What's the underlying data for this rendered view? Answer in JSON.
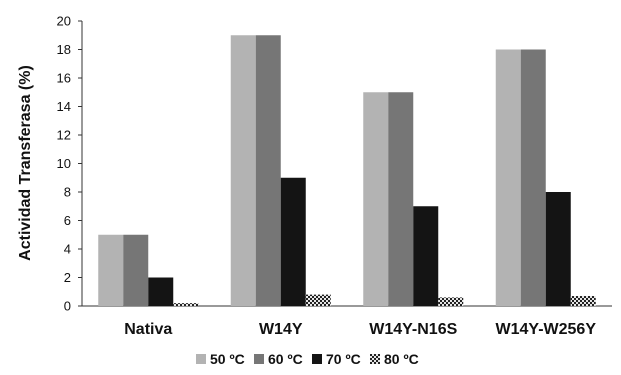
{
  "chart_data": {
    "type": "bar",
    "title": "",
    "xlabel": "",
    "ylabel": "Actividad Transferasa  (%)",
    "categories": [
      "Nativa",
      "W14Y",
      "W14Y-N16S",
      "W14Y-W256Y"
    ],
    "yticks": [
      "0",
      "2",
      "4",
      "6",
      "8",
      "10",
      "12",
      "14",
      "16",
      "18",
      "20"
    ],
    "ylim": [
      0,
      20
    ],
    "grid": false,
    "legend_position": "bottom",
    "series": [
      {
        "name": "50 ºC",
        "color": "#b3b3b3",
        "pattern": "solid",
        "values": [
          5,
          19,
          15,
          18
        ]
      },
      {
        "name": "60 ºC",
        "color": "#767676",
        "pattern": "solid",
        "values": [
          5,
          19,
          15,
          18
        ]
      },
      {
        "name": "70 ºC",
        "color": "#141414",
        "pattern": "solid",
        "values": [
          2,
          9,
          7,
          8
        ]
      },
      {
        "name": "80 ºC",
        "color": "#555555",
        "pattern": "checker",
        "values": [
          0.2,
          0.8,
          0.6,
          0.7
        ]
      }
    ]
  }
}
